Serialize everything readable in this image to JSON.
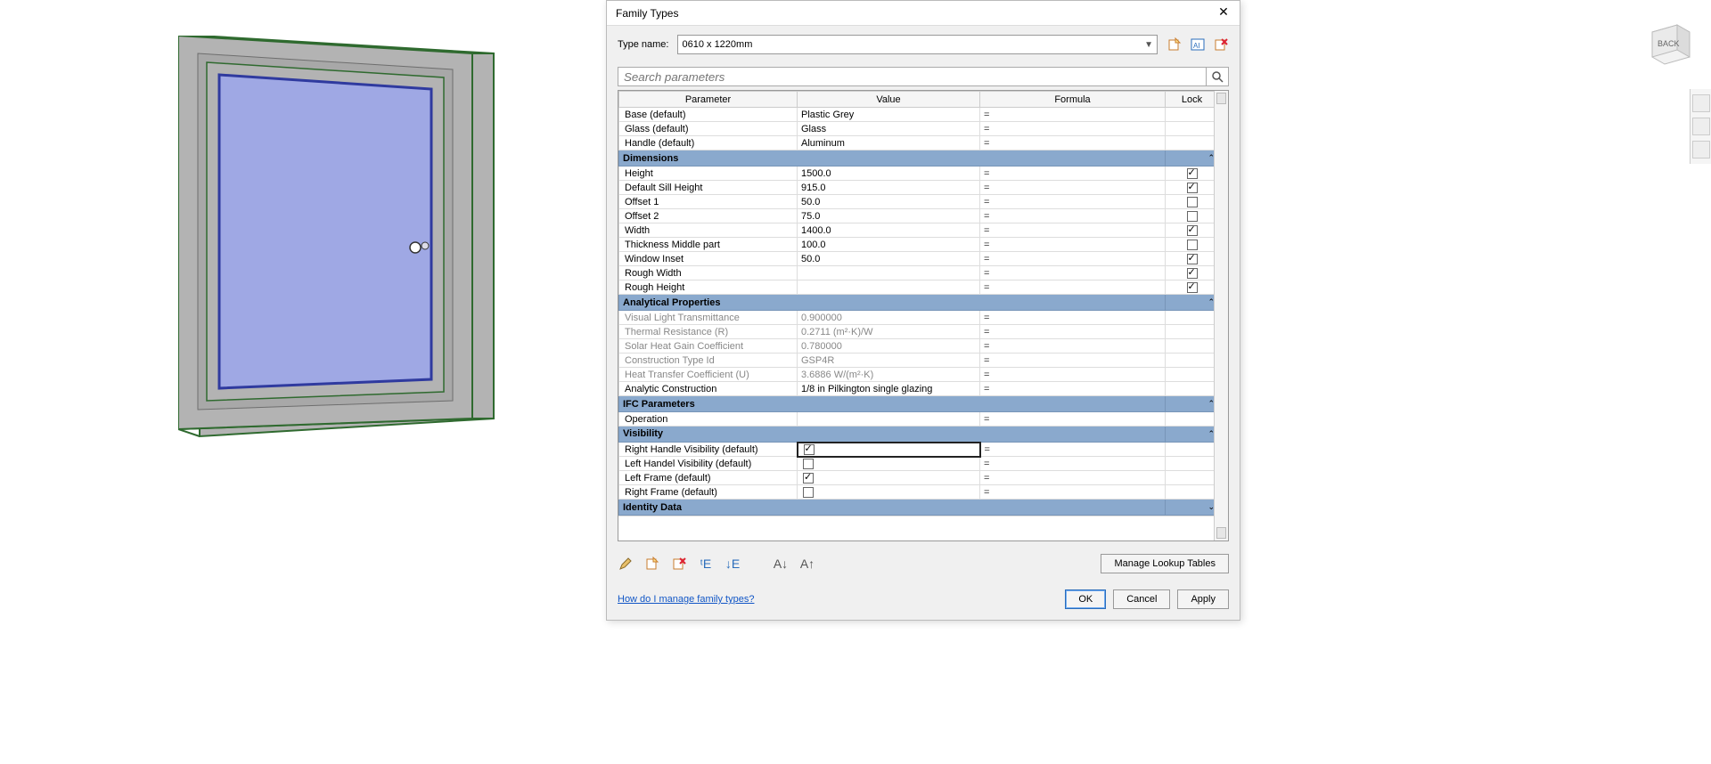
{
  "dialog": {
    "title": "Family Types",
    "type_name_label": "Type name:",
    "type_name_value": "0610 x 1220mm",
    "search_placeholder": "Search parameters",
    "columns": {
      "parameter": "Parameter",
      "value": "Value",
      "formula": "Formula",
      "lock": "Lock"
    },
    "materials_rows": [
      {
        "name": "Base (default)",
        "value": "Plastic Grey",
        "formula": "="
      },
      {
        "name": "Glass (default)",
        "value": "Glass",
        "formula": "="
      },
      {
        "name": "Handle (default)",
        "value": "Aluminum",
        "formula": "="
      }
    ],
    "groups": {
      "dimensions": "Dimensions",
      "analytical": "Analytical Properties",
      "ifc": "IFC Parameters",
      "visibility": "Visibility",
      "identity": "Identity Data"
    },
    "dimensions_rows": [
      {
        "name": "Height",
        "value": "1500.0",
        "formula": "=",
        "lock": true
      },
      {
        "name": "Default Sill Height",
        "value": "915.0",
        "formula": "=",
        "lock": true
      },
      {
        "name": "Offset 1",
        "value": "50.0",
        "formula": "=",
        "lock": false
      },
      {
        "name": "Offset 2",
        "value": "75.0",
        "formula": "=",
        "lock": false
      },
      {
        "name": "Width",
        "value": "1400.0",
        "formula": "=",
        "lock": true
      },
      {
        "name": "Thickness Middle part",
        "value": "100.0",
        "formula": "=",
        "lock": false
      },
      {
        "name": "Window Inset",
        "value": "50.0",
        "formula": "=",
        "lock": true
      },
      {
        "name": "Rough Width",
        "value": "",
        "formula": "=",
        "lock": true
      },
      {
        "name": "Rough Height",
        "value": "",
        "formula": "=",
        "lock": true
      }
    ],
    "analytical_rows": [
      {
        "name": "Visual Light Transmittance",
        "value": "0.900000",
        "formula": "=",
        "readonly": true
      },
      {
        "name": "Thermal Resistance (R)",
        "value": "0.2711 (m²·K)/W",
        "formula": "=",
        "readonly": true
      },
      {
        "name": "Solar Heat Gain Coefficient",
        "value": "0.780000",
        "formula": "=",
        "readonly": true
      },
      {
        "name": "Construction Type Id",
        "value": "GSP4R",
        "formula": "=",
        "readonly": true
      },
      {
        "name": "Heat Transfer Coefficient (U)",
        "value": "3.6886 W/(m²·K)",
        "formula": "=",
        "readonly": true
      },
      {
        "name": "Analytic Construction",
        "value": "1/8 in Pilkington single glazing",
        "formula": "=",
        "readonly": false
      }
    ],
    "ifc_rows": [
      {
        "name": "Operation",
        "value": "",
        "formula": "="
      }
    ],
    "visibility_rows": [
      {
        "name": "Right Handle Visibility (default)",
        "checked": true,
        "formula": "=",
        "selected": true
      },
      {
        "name": "Left Handel Visibility (default)",
        "checked": false,
        "formula": "="
      },
      {
        "name": "Left Frame (default)",
        "checked": true,
        "formula": "="
      },
      {
        "name": "Right Frame (default)",
        "checked": false,
        "formula": "="
      }
    ],
    "manage_lookup": "Manage Lookup Tables",
    "help_link": "How do I manage family types?",
    "buttons": {
      "ok": "OK",
      "cancel": "Cancel",
      "apply": "Apply"
    }
  },
  "viewcube": {
    "face": "BACK"
  },
  "colors": {
    "group_header": "#8aa9cd",
    "frame_outer": "#2f6a2f",
    "frame_fill": "#b3b3b3",
    "glass": "#9fa8e4",
    "glass_border": "#2f3a9f"
  },
  "window3d": {
    "outer_w": 330,
    "outer_h": 430,
    "frame_depth": 24,
    "inner_margin": 36
  }
}
